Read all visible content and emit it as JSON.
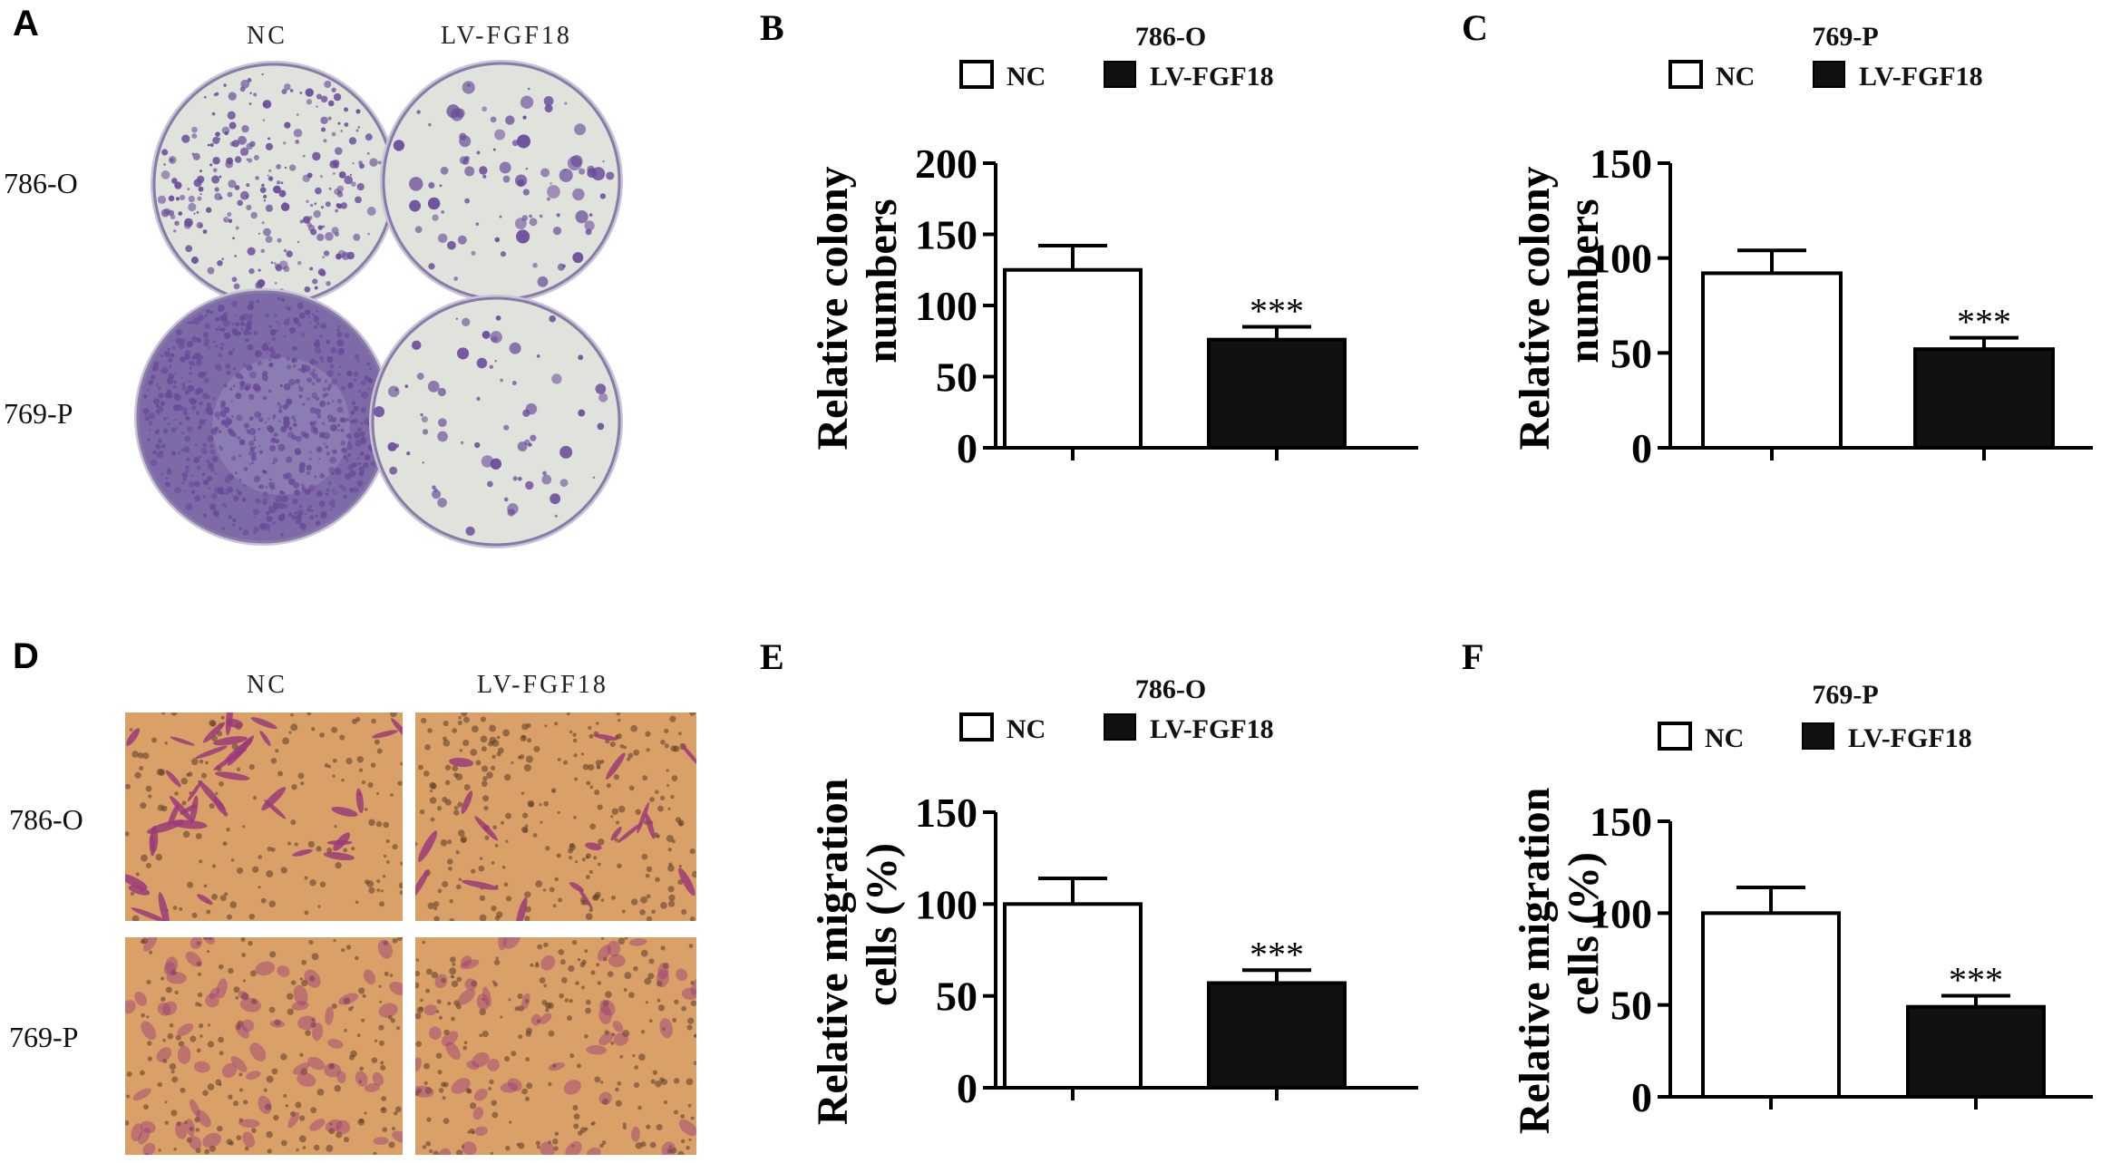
{
  "panels": {
    "A": {
      "letter": "A",
      "columns": [
        "NC",
        "LV-FGF18"
      ],
      "rows": [
        "786-O",
        "769-P"
      ]
    },
    "D": {
      "letter": "D",
      "columns": [
        "NC",
        "LV-FGF18"
      ],
      "rows": [
        "786-O",
        "769-P"
      ]
    }
  },
  "colors": {
    "nc_fill": "#ffffff",
    "lv_fill": "#111111",
    "crystal_violet": "#6a4a9a",
    "dish_background": "#dfe3dc",
    "transwell_background": "#d9a067",
    "cell_stain": "#9b3a7a"
  },
  "chart_data": [
    {
      "panel": "B",
      "type": "bar",
      "title": "786-O",
      "categories": [
        "NC",
        "LV-FGF18"
      ],
      "values": [
        125,
        76
      ],
      "errors": [
        17,
        9
      ],
      "significance": [
        "",
        "***"
      ],
      "ylabel": "Relative colony numbers",
      "ylim": [
        0,
        200
      ],
      "yticks": [
        "0",
        "50",
        "100",
        "150",
        "200"
      ],
      "legend": [
        "NC",
        "LV-FGF18"
      ],
      "legend_position": "top"
    },
    {
      "panel": "C",
      "type": "bar",
      "title": "769-P",
      "categories": [
        "NC",
        "LV-FGF18"
      ],
      "values": [
        92,
        52
      ],
      "errors": [
        12,
        6
      ],
      "significance": [
        "",
        "***"
      ],
      "ylabel": "Relative colony numbers",
      "ylim": [
        0,
        150
      ],
      "yticks": [
        "0",
        "50",
        "100",
        "150"
      ],
      "legend": [
        "NC",
        "LV-FGF18"
      ],
      "legend_position": "top"
    },
    {
      "panel": "E",
      "type": "bar",
      "title": "786-O",
      "categories": [
        "NC",
        "LV-FGF18"
      ],
      "values": [
        100,
        57
      ],
      "errors": [
        14,
        7
      ],
      "significance": [
        "",
        "***"
      ],
      "ylabel": "Relative migration cells (%)",
      "ylim": [
        0,
        150
      ],
      "yticks": [
        "0",
        "50",
        "100",
        "150"
      ],
      "legend": [
        "NC",
        "LV-FGF18"
      ],
      "legend_position": "top"
    },
    {
      "panel": "F",
      "type": "bar",
      "title": "769-P",
      "categories": [
        "NC",
        "LV-FGF18"
      ],
      "values": [
        100,
        49
      ],
      "errors": [
        14,
        6
      ],
      "significance": [
        "",
        "***"
      ],
      "ylabel": "Relative migration cells (%)",
      "ylim": [
        0,
        150
      ],
      "yticks": [
        "0",
        "50",
        "100",
        "150"
      ],
      "legend": [
        "NC",
        "LV-FGF18"
      ],
      "legend_position": "top"
    }
  ]
}
